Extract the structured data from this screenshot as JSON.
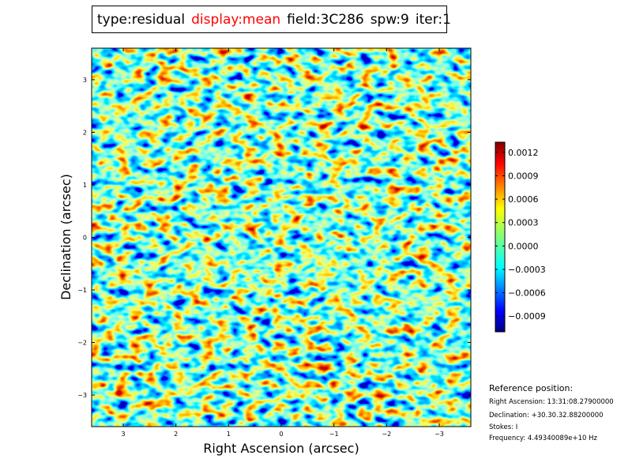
{
  "title": {
    "type": "type:residual",
    "display": "display:mean",
    "field": "field:3C286",
    "spw": "spw:9",
    "iter": "iter:1",
    "display_color": "#ff0000"
  },
  "chart_data": {
    "type": "heatmap",
    "xlabel": "Right Ascension (arcsec)",
    "ylabel": "Declination (arcsec)",
    "xlim": [
      3.6,
      -3.6
    ],
    "ylim": [
      -3.6,
      3.6
    ],
    "x_ticks": [
      "3",
      "2",
      "1",
      "0",
      "−1",
      "−2",
      "−3"
    ],
    "x_tick_values": [
      3,
      2,
      1,
      0,
      -1,
      -2,
      -3
    ],
    "y_ticks": [
      "3",
      "2",
      "1",
      "0",
      "−1",
      "−2",
      "−3"
    ],
    "y_tick_values": [
      3,
      2,
      1,
      0,
      -1,
      -2,
      -3
    ],
    "colormap": "jet",
    "colorbar": {
      "range": [
        -0.0011,
        0.00133
      ],
      "tick_labels": [
        "0.0012",
        "0.0009",
        "0.0006",
        "0.0003",
        "0.0000",
        "−0.0003",
        "−0.0006",
        "−0.0009"
      ],
      "tick_values": [
        0.0012,
        0.0009,
        0.0006,
        0.0003,
        0.0,
        -0.0003,
        -0.0006,
        -0.0009
      ]
    }
  },
  "reference": {
    "heading": "Reference position:",
    "ra": "Right Ascension: 13:31:08.27900000",
    "dec": "Declination: +30.30.32.88200000",
    "stokes": "Stokes: I",
    "freq": "Frequency: 4.49340089e+10 Hz"
  }
}
